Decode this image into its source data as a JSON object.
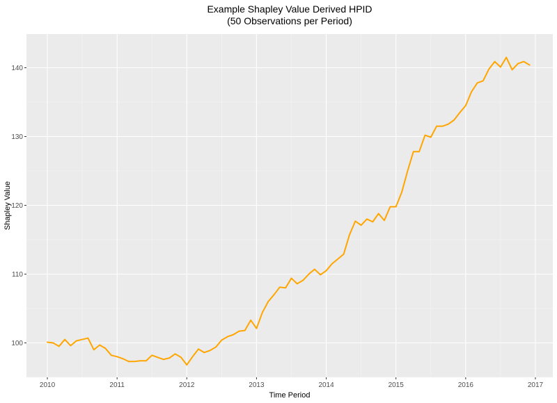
{
  "chart_data": {
    "type": "line",
    "title": "Example Shapley Value Derived HPID",
    "subtitle": "(50 Observations per Period)",
    "xlabel": "Time Period",
    "ylabel": "Shapley Value",
    "xlim": [
      2009.7,
      2017.25
    ],
    "ylim": [
      95,
      144.9
    ],
    "x_ticks": [
      2010,
      2011,
      2012,
      2013,
      2014,
      2015,
      2016,
      2017
    ],
    "x_tick_labels": [
      "2010",
      "2011",
      "2012",
      "2013",
      "2014",
      "2015",
      "2016",
      "2017"
    ],
    "y_ticks": [
      100,
      110,
      120,
      130,
      140
    ],
    "y_tick_labels": [
      "100",
      "110",
      "120",
      "130",
      "140"
    ],
    "grid": true,
    "line_color": "#FFA500",
    "panel_color": "#EBEBEB",
    "series": [
      {
        "x": [
          2010.0,
          2010.083,
          2010.167,
          2010.25,
          2010.333,
          2010.417,
          2010.5,
          2010.583,
          2010.667,
          2010.75,
          2010.833,
          2010.917,
          2011.0,
          2011.083,
          2011.167,
          2011.25,
          2011.333,
          2011.417,
          2011.5,
          2011.583,
          2011.667,
          2011.75,
          2011.833,
          2011.917,
          2012.0,
          2012.083,
          2012.167,
          2012.25,
          2012.333,
          2012.417,
          2012.5,
          2012.583,
          2012.667,
          2012.75,
          2012.833,
          2012.917,
          2013.0,
          2013.083,
          2013.167,
          2013.25,
          2013.333,
          2013.417,
          2013.5,
          2013.583,
          2013.667,
          2013.75,
          2013.833,
          2013.917,
          2014.0,
          2014.083,
          2014.167,
          2014.25,
          2014.333,
          2014.417,
          2014.5,
          2014.583,
          2014.667,
          2014.75,
          2014.833,
          2014.917,
          2015.0,
          2015.083,
          2015.167,
          2015.25,
          2015.333,
          2015.417,
          2015.5,
          2015.583,
          2015.667,
          2015.75,
          2015.833,
          2015.917,
          2016.0,
          2016.083,
          2016.167,
          2016.25,
          2016.333,
          2016.417,
          2016.5,
          2016.583,
          2016.667,
          2016.75,
          2016.833,
          2016.917
        ],
        "y": [
          100.1,
          100.0,
          99.5,
          100.5,
          99.6,
          100.3,
          100.5,
          100.7,
          99.0,
          99.7,
          99.2,
          98.2,
          98.0,
          97.7,
          97.3,
          97.3,
          97.4,
          97.4,
          98.2,
          97.9,
          97.6,
          97.8,
          98.4,
          97.9,
          96.8,
          98.0,
          99.1,
          98.6,
          98.9,
          99.4,
          100.4,
          100.9,
          101.2,
          101.7,
          101.8,
          103.3,
          102.1,
          104.4,
          106.0,
          107.0,
          108.1,
          108.0,
          109.4,
          108.6,
          109.1,
          110.0,
          110.7,
          109.9,
          110.5,
          111.5,
          112.2,
          112.9,
          115.7,
          117.7,
          117.1,
          118.0,
          117.6,
          118.8,
          117.8,
          119.8,
          119.8,
          121.9,
          125.0,
          127.8,
          127.8,
          130.2,
          129.9,
          131.5,
          131.5,
          131.8,
          132.4,
          133.5,
          134.5,
          136.5,
          137.8,
          138.1,
          139.8,
          140.9,
          140.1,
          141.5,
          139.7,
          140.6,
          140.9,
          140.4
        ]
      }
    ]
  }
}
